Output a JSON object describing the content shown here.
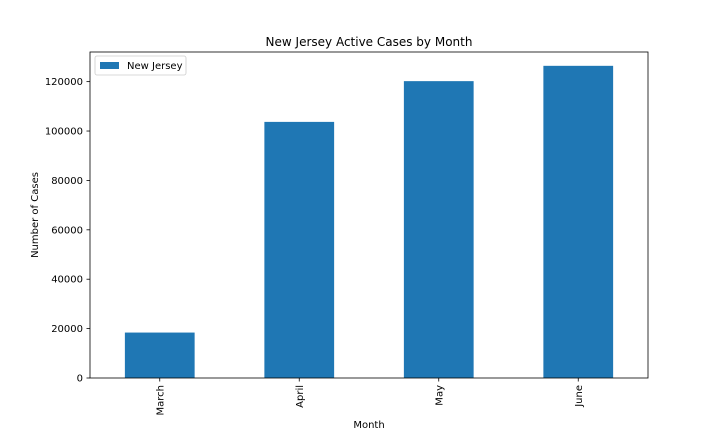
{
  "chart_data": {
    "type": "bar",
    "title": "New Jersey Active Cases by Month",
    "xlabel": "Month",
    "ylabel": "Number of Cases",
    "categories": [
      "March",
      "April",
      "May",
      "June"
    ],
    "series": [
      {
        "name": "New Jersey",
        "values": [
          18400,
          103700,
          120200,
          126400
        ],
        "color": "#1f77b4"
      }
    ],
    "ylim": [
      0,
      132000
    ],
    "yticks": [
      0,
      20000,
      40000,
      60000,
      80000,
      100000,
      120000
    ],
    "ytick_labels": [
      "0",
      "20000",
      "40000",
      "60000",
      "80000",
      "100000",
      "120000"
    ],
    "legend": {
      "position": "top-left"
    },
    "grid": false
  }
}
